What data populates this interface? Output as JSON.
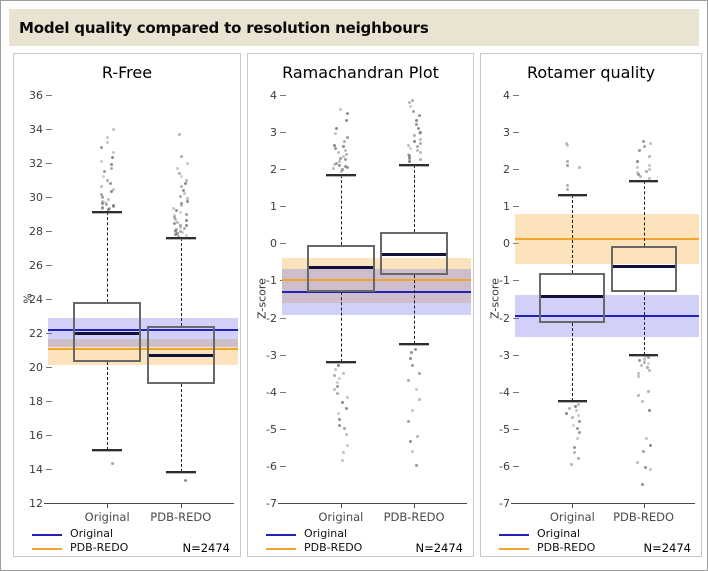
{
  "header": {
    "title": "Model quality compared to resolution neighbours"
  },
  "legend": {
    "entries": [
      {
        "label": "Original",
        "color": "#2222bb"
      },
      {
        "label": "PDB-REDO",
        "color": "#f0a62e"
      }
    ],
    "n_label": "N=2474"
  },
  "colors": {
    "header_bg": "#e9e3d1",
    "panel_border": "#c9c9c9",
    "blue_line": "#2222bb",
    "orange_line": "#f0a62e",
    "blue_band": "rgba(110,110,235,0.32)",
    "orange_band": "rgba(248,186,86,0.40)",
    "box_border": "#686868",
    "median": "#10103a",
    "axis": "#4a4a4a",
    "outlier": "70,70,70"
  },
  "chart_data": [
    {
      "id": "r-free",
      "type": "boxplot",
      "title": "R-Free",
      "ylabel": "%",
      "ylim": [
        12,
        36
      ],
      "yticks": [
        36,
        34,
        32,
        30,
        28,
        26,
        24,
        22,
        20,
        18,
        16,
        14,
        12
      ],
      "categories": [
        "Original",
        "PDB-REDO"
      ],
      "bands": [
        {
          "series": "PDB-REDO",
          "color": "orange",
          "from": 20.1,
          "to": 21.65
        },
        {
          "series": "Original",
          "color": "blue",
          "from": 21.2,
          "to": 22.9
        }
      ],
      "ref_lines": [
        {
          "series": "PDB-REDO",
          "color": "orange",
          "value": 21.05
        },
        {
          "series": "Original",
          "color": "blue",
          "value": 22.2
        }
      ],
      "groups": [
        {
          "label": "Original",
          "whisker_low": 15.1,
          "q1": 20.3,
          "median": 22.0,
          "q3": 23.8,
          "whisker_high": 29.1,
          "outliers_high": [
            29.25,
            29.3,
            29.35,
            29.4,
            29.45,
            29.5,
            29.55,
            29.6,
            29.7,
            29.75,
            29.85,
            29.95,
            30.05,
            30.15,
            30.3,
            30.45,
            30.6,
            30.8,
            31.0,
            31.2,
            31.5,
            31.7,
            31.9,
            32.1,
            32.3,
            32.6,
            32.9,
            33.2,
            33.5,
            34.0
          ],
          "outliers_low": [
            14.3
          ]
        },
        {
          "label": "PDB-REDO",
          "whisker_low": 13.8,
          "q1": 19.0,
          "median": 20.7,
          "q3": 22.4,
          "whisker_high": 27.6,
          "outliers_high": [
            27.7,
            27.75,
            27.8,
            27.85,
            27.9,
            27.95,
            28.0,
            28.05,
            28.1,
            28.15,
            28.2,
            28.3,
            28.35,
            28.45,
            28.5,
            28.6,
            28.7,
            28.8,
            28.9,
            29.0,
            29.1,
            29.2,
            29.35,
            29.5,
            29.6,
            29.75,
            29.9,
            30.05,
            30.2,
            30.4,
            30.6,
            30.8,
            31.0,
            31.2,
            31.4,
            31.7,
            32.0,
            32.4,
            33.7
          ],
          "outliers_low": [
            13.35
          ]
        }
      ]
    },
    {
      "id": "ramachandran",
      "type": "boxplot",
      "title": "Ramachandran Plot",
      "ylabel": "Z-score",
      "ylim": [
        -7,
        4
      ],
      "yticks": [
        4,
        3,
        2,
        1,
        0,
        -1,
        -2,
        -3,
        -4,
        -5,
        -6,
        -7
      ],
      "categories": [
        "Original",
        "PDB-REDO"
      ],
      "bands": [
        {
          "series": "PDB-REDO",
          "color": "orange",
          "from": -1.6,
          "to": -0.4
        },
        {
          "series": "Original",
          "color": "blue",
          "from": -1.93,
          "to": -0.68
        }
      ],
      "ref_lines": [
        {
          "series": "PDB-REDO",
          "color": "orange",
          "value": -1.0
        },
        {
          "series": "Original",
          "color": "blue",
          "value": -1.32
        }
      ],
      "groups": [
        {
          "label": "Original",
          "whisker_low": -3.2,
          "q1": -1.3,
          "median": -0.65,
          "q3": -0.05,
          "whisker_high": 1.85,
          "outliers_high": [
            1.95,
            2.0,
            2.02,
            2.05,
            2.08,
            2.1,
            2.12,
            2.15,
            2.2,
            2.25,
            2.3,
            2.35,
            2.4,
            2.45,
            2.5,
            2.55,
            2.6,
            2.65,
            2.75,
            2.85,
            2.95,
            3.1,
            3.3,
            3.5,
            3.6
          ],
          "outliers_low": [
            -3.3,
            -3.4,
            -3.5,
            -3.55,
            -3.65,
            -3.75,
            -3.85,
            -3.95,
            -4.05,
            -4.15,
            -4.3,
            -4.45,
            -4.6,
            -4.75,
            -4.9,
            -5.0,
            -5.15,
            -5.45,
            -5.65,
            -5.85
          ]
        },
        {
          "label": "PDB-REDO",
          "whisker_low": -2.7,
          "q1": -0.85,
          "median": -0.3,
          "q3": 0.3,
          "whisker_high": 2.1,
          "outliers_high": [
            2.2,
            2.22,
            2.25,
            2.3,
            2.33,
            2.36,
            2.4,
            2.45,
            2.5,
            2.55,
            2.6,
            2.65,
            2.7,
            2.75,
            2.8,
            2.9,
            2.95,
            3.0,
            3.1,
            3.2,
            3.3,
            3.45,
            3.55,
            3.7,
            3.8,
            3.85
          ],
          "outliers_low": [
            -2.85,
            -2.95,
            -3.1,
            -3.3,
            -3.5,
            -3.7,
            -3.95,
            -4.2,
            -4.5,
            -4.8,
            -5.2,
            -5.35,
            -5.6,
            -6.0
          ]
        }
      ]
    },
    {
      "id": "rotamer",
      "type": "boxplot",
      "title": "Rotamer quality",
      "ylabel": "Z-score",
      "ylim": [
        -7,
        4
      ],
      "yticks": [
        4,
        3,
        2,
        1,
        0,
        -1,
        -2,
        -3,
        -4,
        -5,
        -6,
        -7
      ],
      "categories": [
        "Original",
        "PDB-REDO"
      ],
      "bands": [
        {
          "series": "PDB-REDO",
          "color": "orange",
          "from": -0.55,
          "to": 0.8
        },
        {
          "series": "Original",
          "color": "blue",
          "from": -2.53,
          "to": -1.38
        }
      ],
      "ref_lines": [
        {
          "series": "PDB-REDO",
          "color": "orange",
          "value": 0.13
        },
        {
          "series": "Original",
          "color": "blue",
          "value": -1.95
        }
      ],
      "groups": [
        {
          "label": "Original",
          "whisker_low": -4.25,
          "q1": -2.15,
          "median": -1.42,
          "q3": -0.8,
          "whisker_high": 1.3,
          "outliers_high": [
            1.45,
            1.55,
            2.05,
            2.1,
            2.2,
            2.65,
            2.7
          ],
          "outliers_low": [
            -4.35,
            -4.4,
            -4.45,
            -4.5,
            -4.6,
            -4.65,
            -4.7,
            -4.8,
            -4.9,
            -5.0,
            -5.1,
            -5.25,
            -5.5,
            -5.65,
            -5.8,
            -5.95
          ]
        },
        {
          "label": "PDB-REDO",
          "whisker_low": -3.0,
          "q1": -1.3,
          "median": -0.62,
          "q3": -0.08,
          "whisker_high": 1.67,
          "outliers_high": [
            1.75,
            1.8,
            1.85,
            1.9,
            1.95,
            2.0,
            2.05,
            2.1,
            2.2,
            2.35,
            2.5,
            2.6,
            2.7,
            2.75
          ],
          "outliers_low": [
            -3.05,
            -3.08,
            -3.12,
            -3.15,
            -3.2,
            -3.25,
            -3.3,
            -3.35,
            -3.42,
            -3.5,
            -3.6,
            -4.0,
            -4.1,
            -4.25,
            -4.5,
            -5.25,
            -5.45,
            -5.6,
            -5.9,
            -6.05,
            -6.1,
            -6.5
          ]
        }
      ]
    }
  ]
}
